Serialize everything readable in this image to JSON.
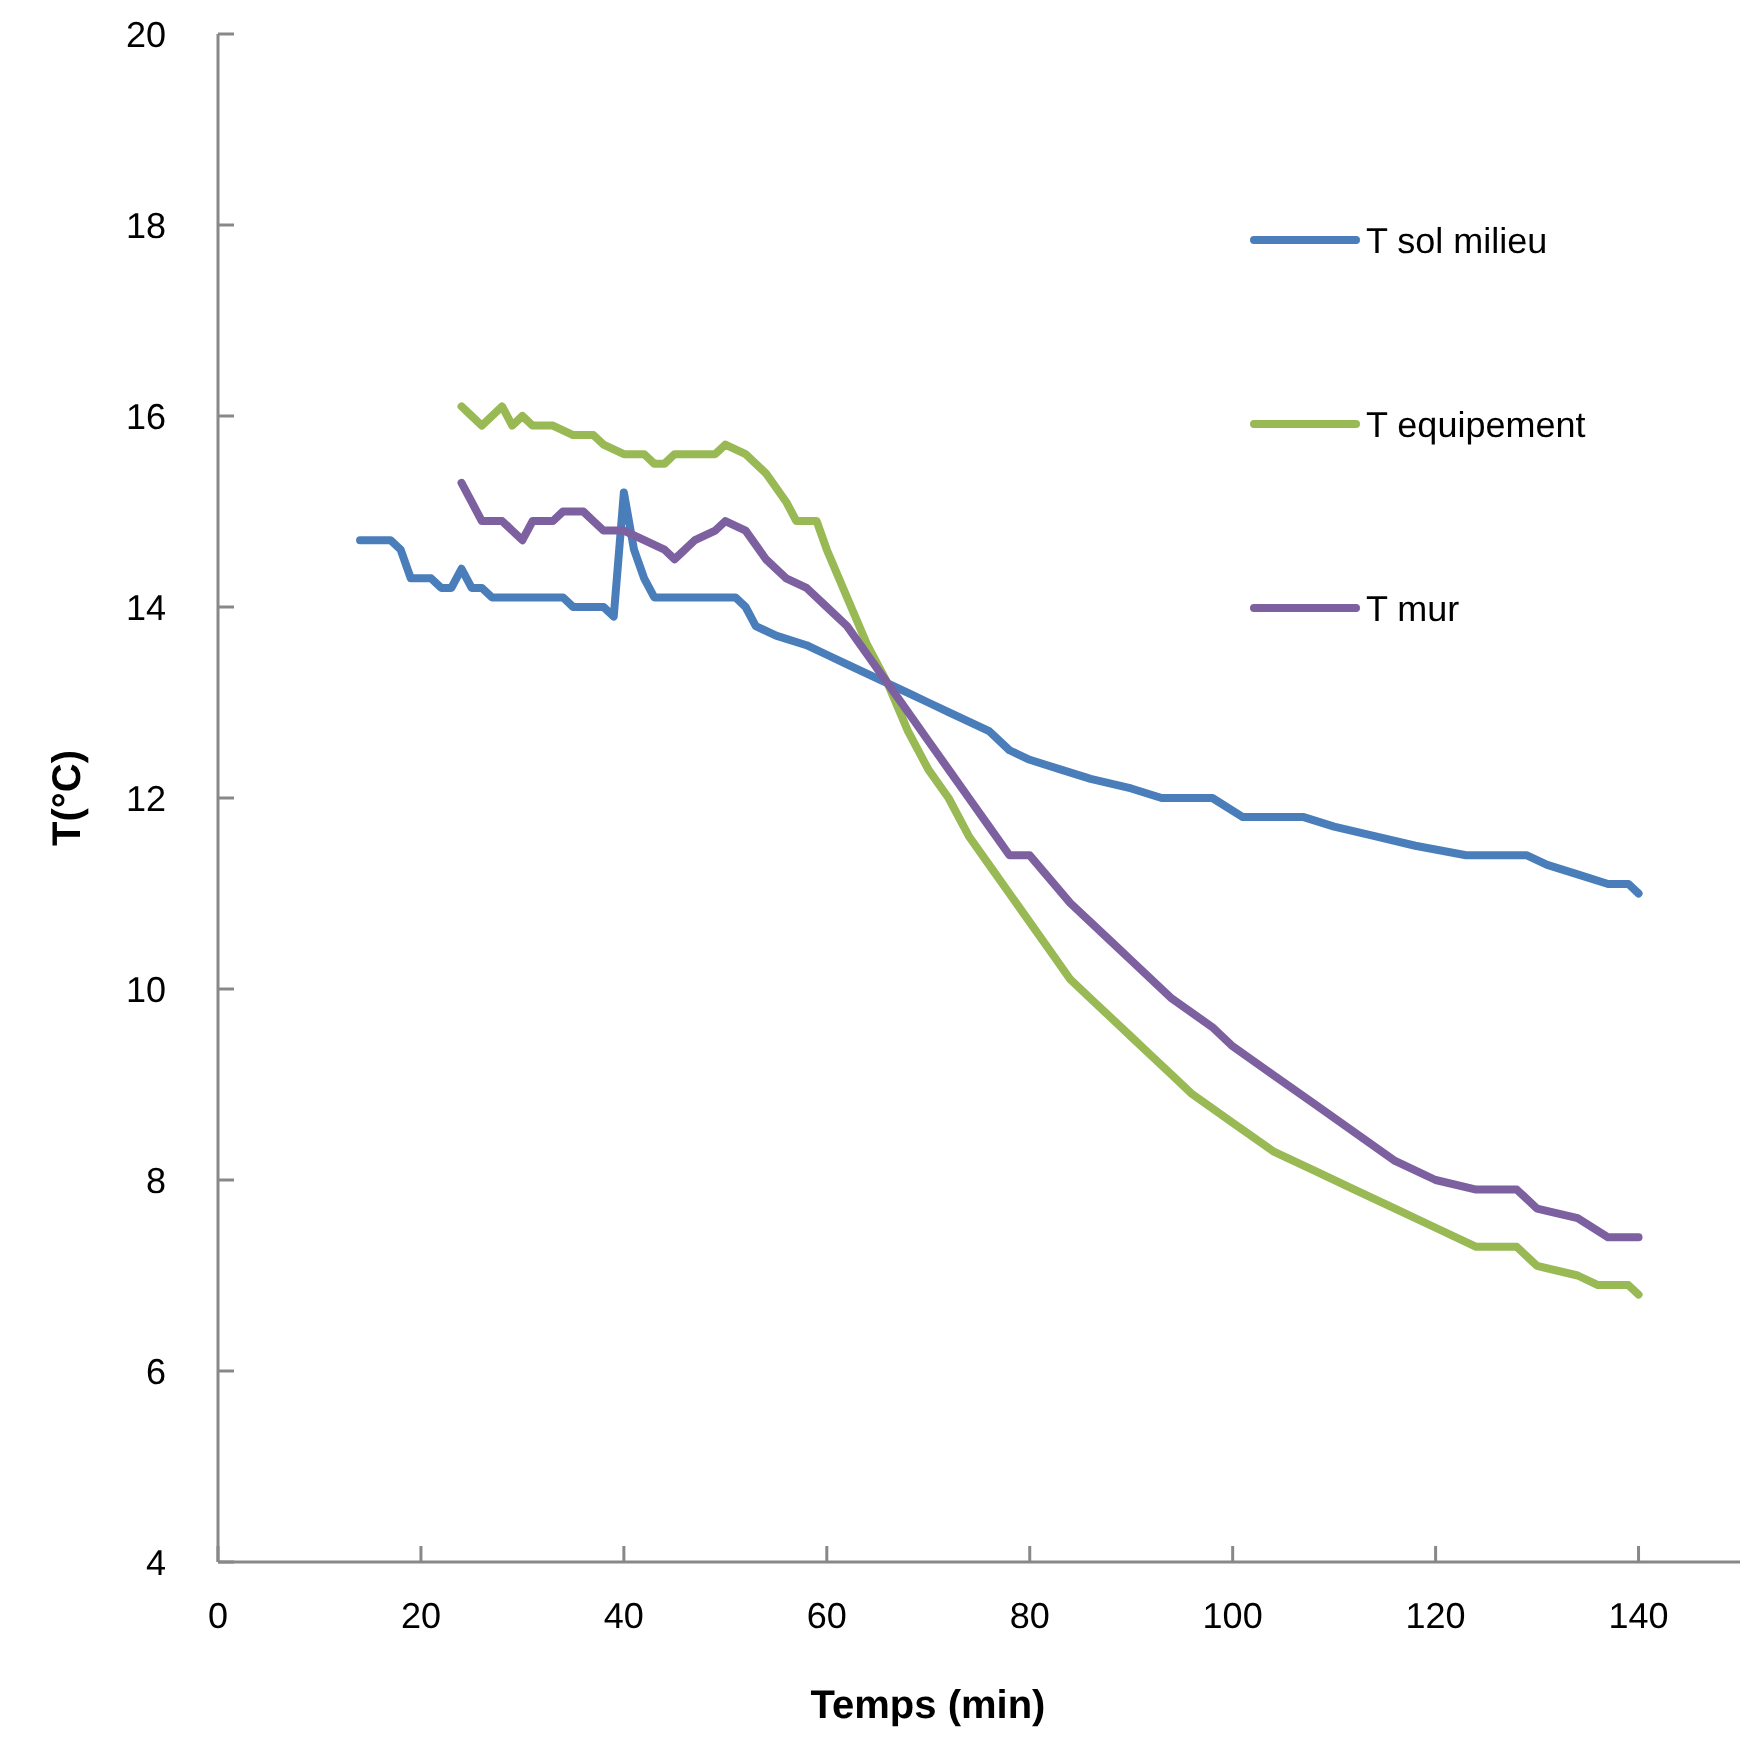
{
  "chart_data": {
    "type": "line",
    "xlabel": "Temps (min)",
    "ylabel": "T(°C)",
    "xlim": [
      0,
      150
    ],
    "xticks": [
      0,
      20,
      40,
      60,
      80,
      100,
      120,
      140
    ],
    "ylim": [
      4,
      20
    ],
    "yticks": [
      4,
      6,
      8,
      10,
      12,
      14,
      16,
      18,
      20
    ],
    "grid": false,
    "legend": "top right",
    "marker": "none",
    "line_style": "solid",
    "series": [
      {
        "name": "T sol milieu",
        "color": "#4a7ebb",
        "x": [
          14,
          17,
          18,
          19,
          21,
          22,
          23,
          24,
          25,
          26,
          27,
          34,
          35,
          38,
          39,
          40,
          41,
          42,
          43,
          51,
          52,
          53,
          55,
          58,
          60,
          62,
          64,
          66,
          68,
          70,
          72,
          74,
          76,
          78,
          80,
          83,
          86,
          90,
          93,
          98,
          101,
          107,
          110,
          114,
          118,
          123,
          129,
          131,
          134,
          137,
          139,
          140
        ],
        "values": [
          14.7,
          14.7,
          14.6,
          14.3,
          14.3,
          14.2,
          14.2,
          14.4,
          14.2,
          14.2,
          14.1,
          14.1,
          14.0,
          14.0,
          13.9,
          15.2,
          14.6,
          14.3,
          14.1,
          14.1,
          14.0,
          13.8,
          13.7,
          13.6,
          13.5,
          13.4,
          13.3,
          13.2,
          13.1,
          13.0,
          12.9,
          12.8,
          12.7,
          12.5,
          12.4,
          12.3,
          12.2,
          12.1,
          12.0,
          12.0,
          11.8,
          11.8,
          11.7,
          11.6,
          11.5,
          11.4,
          11.4,
          11.3,
          11.2,
          11.1,
          11.1,
          11.0
        ]
      },
      {
        "name": "T equipement",
        "color": "#98b954",
        "x": [
          24,
          25,
          26,
          28,
          29,
          30,
          31,
          33,
          35,
          37,
          38,
          40,
          42,
          43,
          44,
          45,
          49,
          50,
          52,
          54,
          56,
          57,
          59,
          60,
          62,
          64,
          66,
          68,
          70,
          72,
          74,
          76,
          78,
          80,
          82,
          84,
          86,
          88,
          90,
          92,
          94,
          96,
          100,
          104,
          108,
          112,
          116,
          120,
          124,
          128,
          130,
          134,
          136,
          139,
          140
        ],
        "values": [
          16.1,
          16.0,
          15.9,
          16.1,
          15.9,
          16.0,
          15.9,
          15.9,
          15.8,
          15.8,
          15.7,
          15.6,
          15.6,
          15.5,
          15.5,
          15.6,
          15.6,
          15.7,
          15.6,
          15.4,
          15.1,
          14.9,
          14.9,
          14.6,
          14.1,
          13.6,
          13.2,
          12.7,
          12.3,
          12.0,
          11.6,
          11.3,
          11.0,
          10.7,
          10.4,
          10.1,
          9.9,
          9.7,
          9.5,
          9.3,
          9.1,
          8.9,
          8.6,
          8.3,
          8.1,
          7.9,
          7.7,
          7.5,
          7.3,
          7.3,
          7.1,
          7.0,
          6.9,
          6.9,
          6.8
        ]
      },
      {
        "name": "T mur",
        "color": "#7d60a0",
        "x": [
          24,
          25,
          26,
          28,
          29,
          30,
          31,
          33,
          34,
          36,
          37,
          38,
          40,
          42,
          44,
          45,
          47,
          49,
          50,
          52,
          54,
          56,
          58,
          60,
          62,
          64,
          66,
          68,
          70,
          72,
          74,
          76,
          78,
          80,
          84,
          88,
          90,
          94,
          98,
          100,
          104,
          108,
          112,
          116,
          120,
          124,
          128,
          130,
          134,
          137,
          140
        ],
        "values": [
          15.3,
          15.1,
          14.9,
          14.9,
          14.8,
          14.7,
          14.9,
          14.9,
          15.0,
          15.0,
          14.9,
          14.8,
          14.8,
          14.7,
          14.6,
          14.5,
          14.7,
          14.8,
          14.9,
          14.8,
          14.5,
          14.3,
          14.2,
          14.0,
          13.8,
          13.5,
          13.2,
          12.9,
          12.6,
          12.3,
          12.0,
          11.7,
          11.4,
          11.4,
          10.9,
          10.5,
          10.3,
          9.9,
          9.6,
          9.4,
          9.1,
          8.8,
          8.5,
          8.2,
          8.0,
          7.9,
          7.9,
          7.7,
          7.6,
          7.4,
          7.4
        ]
      }
    ]
  }
}
